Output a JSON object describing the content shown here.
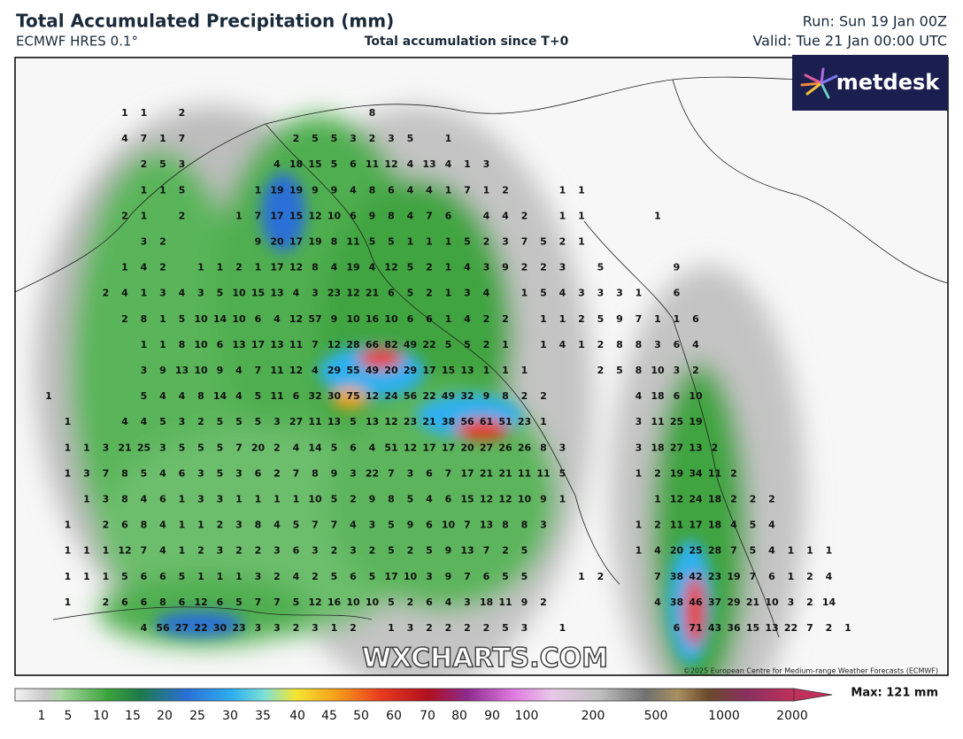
{
  "header": {
    "title": "Total Accumulated Precipitation (mm)",
    "model": "ECMWF HRES 0.1°",
    "subtitle": "Total accumulation since T+0",
    "run": "Run: Sun 19 Jan 00Z",
    "valid": "Valid: Tue 21 Jan 00:00 UTC"
  },
  "logo": "metdesk",
  "watermark": "WXCHARTS.COM",
  "credit": "©2025 European Centre for Medium-range Weather Forecasts (ECMWF)",
  "grid": {
    "rows": [
      [
        null,
        null,
        null,
        null,
        1,
        1,
        null,
        2,
        null,
        null,
        null,
        null,
        null,
        null,
        null,
        null,
        null,
        8
      ],
      [
        null,
        null,
        null,
        null,
        4,
        7,
        1,
        7,
        null,
        null,
        null,
        null,
        null,
        2,
        5,
        5,
        3,
        2,
        3,
        5,
        null,
        1
      ],
      [
        null,
        null,
        null,
        null,
        null,
        2,
        5,
        3,
        null,
        null,
        null,
        null,
        4,
        18,
        15,
        5,
        6,
        11,
        12,
        4,
        13,
        4,
        1,
        3
      ],
      [
        null,
        null,
        null,
        null,
        null,
        1,
        1,
        5,
        null,
        null,
        null,
        1,
        19,
        19,
        9,
        9,
        4,
        8,
        6,
        4,
        4,
        1,
        7,
        1,
        2,
        null,
        null,
        1,
        1
      ],
      [
        null,
        null,
        null,
        null,
        2,
        1,
        null,
        2,
        null,
        null,
        1,
        7,
        17,
        15,
        12,
        10,
        6,
        9,
        8,
        4,
        7,
        6,
        null,
        4,
        4,
        2,
        null,
        1,
        1,
        null,
        null,
        null,
        1
      ],
      [
        null,
        null,
        null,
        null,
        null,
        3,
        2,
        null,
        null,
        null,
        null,
        9,
        20,
        17,
        19,
        8,
        11,
        5,
        5,
        1,
        1,
        1,
        5,
        2,
        3,
        7,
        5,
        2,
        1
      ],
      [
        null,
        null,
        null,
        null,
        1,
        4,
        2,
        null,
        1,
        1,
        2,
        1,
        17,
        12,
        8,
        4,
        19,
        4,
        12,
        5,
        2,
        1,
        4,
        3,
        9,
        2,
        2,
        3,
        null,
        5,
        null,
        null,
        null,
        9
      ],
      [
        null,
        null,
        null,
        2,
        4,
        1,
        3,
        4,
        3,
        5,
        10,
        15,
        13,
        4,
        3,
        23,
        12,
        21,
        6,
        5,
        2,
        1,
        3,
        4,
        null,
        1,
        5,
        4,
        3,
        3,
        3,
        1,
        null,
        6
      ],
      [
        null,
        null,
        null,
        null,
        2,
        8,
        1,
        5,
        10,
        14,
        10,
        6,
        4,
        12,
        57,
        9,
        10,
        16,
        10,
        6,
        6,
        1,
        4,
        2,
        2,
        null,
        1,
        1,
        2,
        5,
        9,
        7,
        1,
        1,
        6
      ],
      [
        null,
        null,
        null,
        null,
        null,
        1,
        1,
        8,
        10,
        6,
        13,
        17,
        13,
        11,
        7,
        12,
        28,
        66,
        82,
        49,
        22,
        5,
        5,
        2,
        1,
        null,
        1,
        4,
        1,
        2,
        8,
        8,
        3,
        6,
        4
      ],
      [
        null,
        null,
        null,
        null,
        null,
        3,
        9,
        13,
        10,
        9,
        4,
        7,
        11,
        12,
        4,
        29,
        55,
        49,
        20,
        29,
        17,
        15,
        13,
        1,
        1,
        1,
        null,
        null,
        null,
        2,
        5,
        8,
        10,
        3,
        2
      ],
      [
        1,
        null,
        null,
        null,
        null,
        5,
        4,
        4,
        8,
        14,
        4,
        5,
        11,
        6,
        32,
        30,
        75,
        12,
        24,
        56,
        22,
        49,
        32,
        9,
        8,
        2,
        2,
        null,
        null,
        null,
        null,
        4,
        18,
        6,
        10
      ],
      [
        null,
        1,
        null,
        null,
        4,
        4,
        5,
        3,
        2,
        5,
        5,
        5,
        3,
        27,
        11,
        13,
        5,
        13,
        12,
        23,
        21,
        38,
        56,
        61,
        51,
        23,
        1,
        null,
        null,
        null,
        null,
        3,
        11,
        25,
        19
      ],
      [
        null,
        1,
        1,
        3,
        21,
        25,
        3,
        5,
        5,
        5,
        7,
        20,
        2,
        4,
        14,
        5,
        6,
        4,
        51,
        12,
        17,
        17,
        20,
        27,
        26,
        26,
        8,
        3,
        null,
        null,
        null,
        3,
        18,
        27,
        13,
        2
      ],
      [
        null,
        1,
        3,
        7,
        8,
        5,
        4,
        6,
        3,
        5,
        3,
        6,
        2,
        7,
        8,
        9,
        3,
        22,
        7,
        3,
        6,
        7,
        17,
        21,
        21,
        11,
        11,
        5,
        null,
        null,
        null,
        1,
        2,
        19,
        34,
        11,
        2
      ],
      [
        null,
        null,
        1,
        3,
        8,
        4,
        6,
        1,
        3,
        3,
        1,
        1,
        1,
        1,
        10,
        5,
        2,
        9,
        8,
        5,
        4,
        6,
        15,
        12,
        12,
        10,
        9,
        1,
        null,
        null,
        null,
        null,
        1,
        12,
        24,
        18,
        2,
        2,
        2
      ],
      [
        null,
        1,
        null,
        2,
        6,
        8,
        4,
        1,
        1,
        2,
        3,
        8,
        4,
        5,
        7,
        7,
        4,
        3,
        5,
        9,
        6,
        10,
        7,
        13,
        8,
        8,
        3,
        null,
        null,
        null,
        null,
        1,
        2,
        11,
        17,
        18,
        4,
        5,
        4
      ],
      [
        null,
        1,
        1,
        1,
        12,
        7,
        4,
        1,
        2,
        3,
        2,
        2,
        3,
        6,
        3,
        2,
        3,
        2,
        5,
        2,
        5,
        9,
        13,
        7,
        2,
        5,
        null,
        null,
        null,
        null,
        null,
        1,
        4,
        20,
        25,
        28,
        7,
        5,
        4,
        1,
        1,
        1
      ],
      [
        null,
        1,
        1,
        1,
        5,
        6,
        6,
        5,
        1,
        1,
        1,
        3,
        2,
        4,
        2,
        5,
        6,
        5,
        17,
        10,
        3,
        9,
        7,
        6,
        5,
        5,
        null,
        null,
        1,
        2,
        null,
        null,
        7,
        38,
        42,
        23,
        19,
        7,
        6,
        1,
        2,
        4
      ],
      [
        null,
        1,
        null,
        2,
        6,
        6,
        8,
        6,
        12,
        6,
        5,
        7,
        7,
        5,
        12,
        16,
        10,
        10,
        5,
        2,
        6,
        4,
        3,
        18,
        11,
        9,
        2,
        null,
        null,
        null,
        null,
        null,
        4,
        38,
        46,
        37,
        29,
        21,
        10,
        3,
        2,
        14
      ],
      [
        null,
        null,
        null,
        null,
        null,
        4,
        56,
        27,
        22,
        30,
        23,
        3,
        3,
        2,
        3,
        1,
        2,
        null,
        1,
        3,
        2,
        2,
        2,
        2,
        5,
        3,
        null,
        1,
        null,
        null,
        null,
        null,
        null,
        6,
        71,
        43,
        36,
        15,
        13,
        22,
        7,
        2,
        1
      ]
    ]
  },
  "colorbar": {
    "ticks": [
      1,
      5,
      10,
      15,
      20,
      25,
      30,
      35,
      40,
      45,
      50,
      60,
      70,
      80,
      90,
      100,
      200,
      500,
      1000,
      2000
    ],
    "max_label": "Max: 121 mm"
  }
}
